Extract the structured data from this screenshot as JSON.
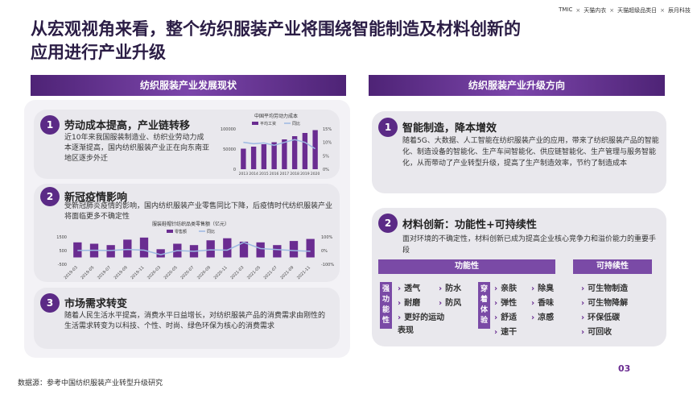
{
  "header": {
    "title": "从宏观视角来看，整个纺织服装产业将围绕智能制造及材料创新的应用进行产业升级",
    "logos": [
      "TMIC",
      "天猫内衣",
      "天猫超级品类日",
      "辰月科技"
    ]
  },
  "left": {
    "heading": "纺织服装产业发展现状",
    "items": [
      {
        "number": 1,
        "title": "劳动成本提高，产业链转移",
        "text": "近10年来我国服装制造业、纺织业劳动力成本逐渐提高，国内纺织服装产业正在向东南亚地区逐步外迁",
        "chart_data": {
          "type": "bar",
          "title": "中国平均劳动力成本",
          "categories": [
            "2013",
            "2014",
            "2015",
            "2016",
            "2017",
            "2018",
            "2019",
            "2020"
          ],
          "series": [
            {
              "name": "平均工资",
              "type": "bar",
              "color": "#6a2c91",
              "values": [
                51000,
                56000,
                62000,
                67000,
                74000,
                82000,
                90000,
                97000
              ]
            },
            {
              "name": "同比",
              "type": "line",
              "axis": "y2",
              "color": "#9cb9e2",
              "values": [
                10,
                9.5,
                9.8,
                8.9,
                10,
                11,
                10,
                7.6
              ]
            }
          ],
          "ylim": [
            0,
            100000
          ],
          "yticks": [
            0,
            50000,
            100000
          ],
          "y2lim": [
            0,
            15
          ],
          "y2ticks": [
            {
              "value": 0,
              "label": "0%"
            },
            {
              "value": 5,
              "label": "5%"
            },
            {
              "value": 10,
              "label": "10%"
            },
            {
              "value": 15,
              "label": "15%"
            }
          ]
        }
      },
      {
        "number": 2,
        "title": "新冠疫情影响",
        "text": "受新冠肺炎疫情的影响，国内纺织服装产业零售同比下降，后疫情时代纺织服装产业将面临更多不确定性",
        "chart_data": {
          "type": "bar",
          "title": "服装鞋帽针纺织品类零售额（亿元）",
          "categories": [
            "2019-03",
            "2019-05",
            "2019-07",
            "2019-09",
            "2019-11",
            "2020-03",
            "2020-05",
            "2020-07",
            "2020-09",
            "2020-11",
            "2021-03",
            "2021-05",
            "2021-07",
            "2021-09",
            "2021-11"
          ],
          "series": [
            {
              "name": "零售额",
              "type": "bar",
              "color": "#6a2c91",
              "values": [
                1100,
                1000,
                900,
                1300,
                1450,
                600,
                1000,
                900,
                1250,
                1400,
                1150,
                1100,
                900,
                1200,
                1350
              ]
            },
            {
              "name": "同比",
              "type": "line",
              "axis": "y2",
              "color": "#9cb9e2",
              "values": [
                1,
                2,
                1,
                8,
                3,
                -30,
                0,
                -5,
                5,
                3,
                60,
                15,
                7,
                0,
                -5
              ]
            }
          ],
          "ylim": [
            -500,
            1500
          ],
          "yticks": [
            -500,
            500,
            1500
          ],
          "y2lim": [
            -100,
            100
          ],
          "y2ticks": [
            {
              "value": -100,
              "label": "-100%"
            },
            {
              "value": 0,
              "label": "0%"
            },
            {
              "value": 100,
              "label": "100%"
            }
          ]
        }
      },
      {
        "number": 3,
        "title": "市场需求转变",
        "text": "随着人民生活水平提高，消费水平日益增长，对纺织服装产品的消费需求由刚性的生活需求转变为以科技、个性、时尚、绿色环保为核心的消费需求"
      }
    ]
  },
  "right": {
    "heading": "纺织服装产业升级方向",
    "items": [
      {
        "number": 1,
        "title": "智能制造，降本增效",
        "text": "随着5G、大数据、人工智能在纺织服装产业的应用，带来了纺织服装产品的智能化、制造设备的智能化、生产车间智能化、供应链智能化、生产管理与服务智能化，从而带动了产业转型升级，提高了生产制造效率，节约了制造成本"
      },
      {
        "number": 2,
        "title": "材料创新：功能性+可持续性",
        "text": "面对环境的不确定性，材料创新已成为提高企业核心竞争力和溢价能力的重要手段",
        "functional": {
          "heading": "功能性",
          "groups": [
            {
              "label": "强功能性",
              "items": [
                "透气",
                "防水",
                "耐磨",
                "防风",
                "更好的运动表现"
              ]
            },
            {
              "label": "穿着体验",
              "items": [
                "亲肤",
                "除臭",
                "弹性",
                "香味",
                "舒适",
                "凉感",
                "速干"
              ]
            }
          ]
        },
        "sustainable": {
          "heading": "可持续性",
          "items": [
            "可生物制造",
            "可生物降解",
            "环保低碳",
            "可回收"
          ]
        }
      }
    ]
  },
  "footer": {
    "source": "数据源：参考中国纺织服装产业转型升级研究",
    "page": "03"
  }
}
